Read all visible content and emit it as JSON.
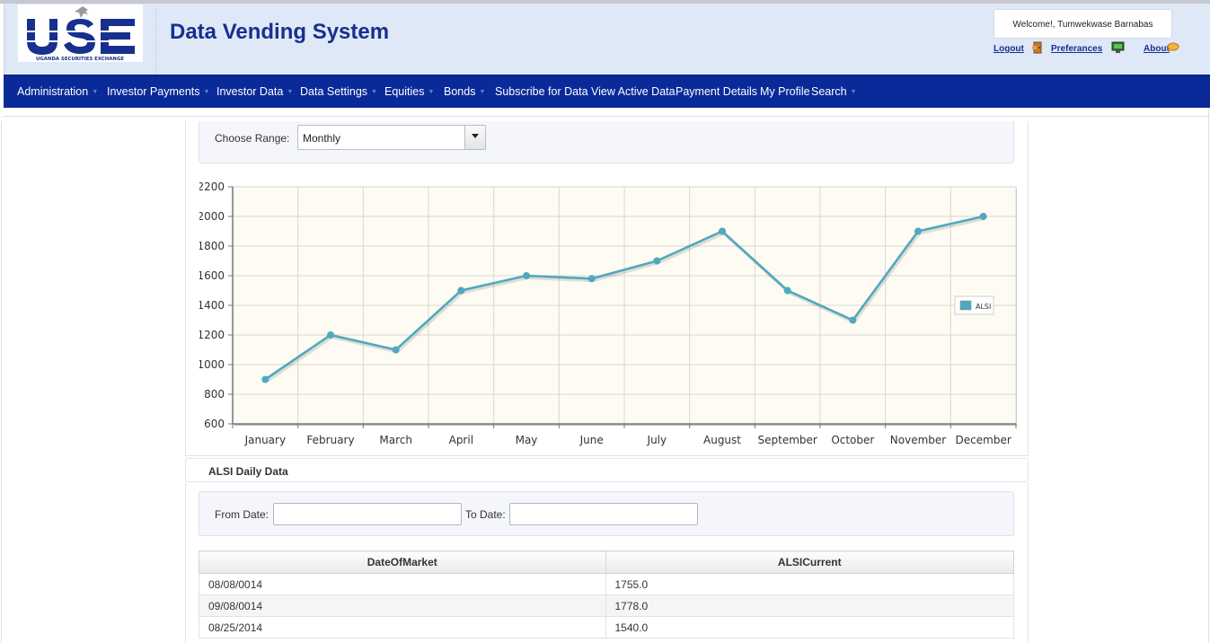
{
  "app": {
    "title": "Data Vending System",
    "logo_text": "USE",
    "logo_subtext": "UGANDA SECURITIES EXCHANGE",
    "welcome": "Welcome!, Tumwekwase Barnabas"
  },
  "top_links": [
    {
      "label": "Logout",
      "icon": "door-exit-icon"
    },
    {
      "label": "Preferances",
      "icon": "monitor-settings-icon"
    },
    {
      "label": "About",
      "icon": "speech-bubble-icon"
    }
  ],
  "menu": [
    {
      "label": "Administration",
      "has_submenu": true
    },
    {
      "label": "Investor Payments",
      "has_submenu": true
    },
    {
      "label": "Investor Data",
      "has_submenu": true
    },
    {
      "label": "Data Settings",
      "has_submenu": true
    },
    {
      "label": "Equities",
      "has_submenu": true
    },
    {
      "label": "Bonds",
      "has_submenu": true
    },
    {
      "label": "Subscribe for Data",
      "has_submenu": false
    },
    {
      "label": "View Active Data",
      "has_submenu": false
    },
    {
      "label": "Payment Details",
      "has_submenu": false
    },
    {
      "label": "My Profile",
      "has_submenu": false
    },
    {
      "label": "Search",
      "has_submenu": true
    }
  ],
  "range": {
    "label": "Choose Range:",
    "selected": "Monthly"
  },
  "chart_data": {
    "type": "line",
    "categories": [
      "January",
      "February",
      "March",
      "April",
      "May",
      "June",
      "July",
      "August",
      "September",
      "October",
      "November",
      "December"
    ],
    "series": [
      {
        "name": "ALSI",
        "values": [
          900,
          1200,
          1100,
          1500,
          1600,
          1580,
          1700,
          1900,
          1500,
          1300,
          1900,
          2000
        ]
      }
    ],
    "ylim": [
      600,
      2200
    ],
    "yticks": [
      600,
      800,
      1000,
      1200,
      1400,
      1600,
      1800,
      2000,
      2200
    ],
    "grid": true,
    "legend": "right",
    "colors": {
      "series": "#4fa8bf",
      "background": "#fefcf2",
      "grid": "#d6d6d6"
    }
  },
  "daily": {
    "title": "ALSI Daily Data",
    "from_label": "From Date:",
    "to_label": "To Date:",
    "from_value": "",
    "to_value": "",
    "columns": [
      "DateOfMarket",
      "ALSICurrent"
    ],
    "rows": [
      [
        "08/08/0014",
        "1755.0"
      ],
      [
        "09/08/0014",
        "1778.0"
      ],
      [
        "08/25/2014",
        "1540.0"
      ]
    ]
  },
  "colors": {
    "brand": "#17308e",
    "menubar": "#0a2a9a",
    "header_bg": "#dfe8f6"
  }
}
